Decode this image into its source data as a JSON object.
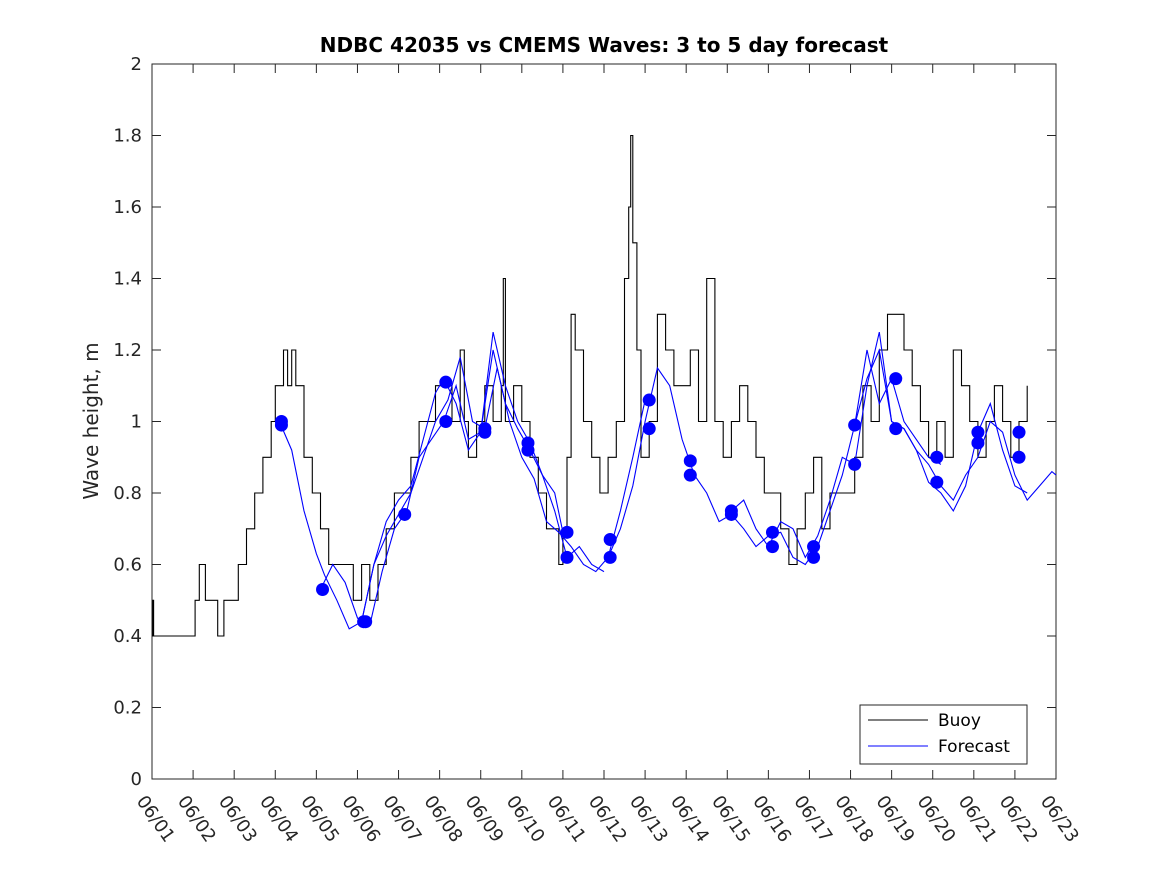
{
  "chart_data": {
    "type": "line",
    "title": "NDBC 42035 vs CMEMS Waves: 3 to 5 day forecast",
    "xlabel": "",
    "ylabel": "Wave height, m",
    "ylim": [
      0,
      2
    ],
    "yticks": [
      "0",
      "0.2",
      "0.4",
      "0.6",
      "0.8",
      "1",
      "1.2",
      "1.4",
      "1.6",
      "1.8",
      "2"
    ],
    "xlim": [
      "06/01",
      "06/23"
    ],
    "xticks": [
      "06/01",
      "06/02",
      "06/03",
      "06/04",
      "06/05",
      "06/06",
      "06/07",
      "06/08",
      "06/09",
      "06/10",
      "06/11",
      "06/12",
      "06/13",
      "06/14",
      "06/15",
      "06/16",
      "06/17",
      "06/18",
      "06/19",
      "06/20",
      "06/21",
      "06/22",
      "06/23"
    ],
    "grid": false,
    "legend_position": "bottom-right",
    "colors": {
      "buoy": "#000000",
      "forecast": "#0000ff"
    },
    "series": [
      {
        "name": "Buoy",
        "x_unit": "day_of_june",
        "x": [
          1.0,
          1.02,
          1.04,
          1.1,
          2.0,
          2.05,
          2.15,
          2.3,
          2.5,
          2.6,
          2.75,
          3.0,
          3.1,
          3.2,
          3.3,
          3.5,
          3.7,
          3.9,
          4.0,
          4.1,
          4.2,
          4.3,
          4.4,
          4.5,
          4.7,
          4.9,
          5.1,
          5.3,
          5.6,
          5.9,
          6.1,
          6.3,
          6.5,
          6.7,
          6.9,
          7.1,
          7.3,
          7.5,
          7.7,
          7.9,
          8.1,
          8.3,
          8.5,
          8.6,
          8.7,
          8.9,
          9.1,
          9.3,
          9.5,
          9.55,
          9.6,
          9.8,
          10.0,
          10.2,
          10.4,
          10.6,
          10.8,
          10.9,
          11.0,
          11.1,
          11.2,
          11.3,
          11.5,
          11.7,
          11.9,
          12.1,
          12.3,
          12.5,
          12.6,
          12.65,
          12.7,
          12.8,
          12.9,
          13.1,
          13.3,
          13.5,
          13.7,
          13.9,
          14.1,
          14.3,
          14.5,
          14.7,
          14.9,
          15.1,
          15.3,
          15.5,
          15.7,
          15.9,
          16.1,
          16.3,
          16.5,
          16.7,
          16.9,
          17.1,
          17.3,
          17.5,
          17.7,
          17.9,
          18.1,
          18.3,
          18.5,
          18.7,
          18.9,
          19.1,
          19.3,
          19.5,
          19.7,
          19.9,
          20.1,
          20.3,
          20.5,
          20.7,
          20.9,
          21.1,
          21.3,
          21.5,
          21.7,
          21.9,
          22.1,
          22.3
        ],
        "y": [
          0.4,
          0.5,
          0.4,
          0.4,
          0.4,
          0.5,
          0.6,
          0.5,
          0.5,
          0.4,
          0.5,
          0.5,
          0.6,
          0.6,
          0.7,
          0.8,
          0.9,
          1.0,
          1.1,
          1.1,
          1.2,
          1.1,
          1.2,
          1.1,
          0.9,
          0.8,
          0.7,
          0.6,
          0.6,
          0.5,
          0.6,
          0.5,
          0.6,
          0.7,
          0.8,
          0.8,
          0.9,
          1.0,
          1.0,
          1.1,
          1.1,
          1.0,
          1.2,
          1.0,
          0.9,
          1.0,
          1.1,
          1.0,
          1.1,
          1.4,
          1.0,
          1.1,
          1.0,
          0.9,
          0.8,
          0.7,
          0.7,
          0.6,
          0.7,
          0.9,
          1.3,
          1.2,
          1.0,
          0.9,
          0.8,
          0.9,
          1.0,
          1.4,
          1.6,
          1.8,
          1.5,
          1.2,
          0.9,
          1.0,
          1.3,
          1.2,
          1.1,
          1.1,
          1.2,
          1.0,
          1.4,
          1.0,
          0.9,
          1.0,
          1.1,
          1.0,
          0.9,
          0.8,
          0.8,
          0.7,
          0.6,
          0.7,
          0.8,
          0.9,
          0.7,
          0.8,
          0.8,
          0.8,
          0.9,
          1.1,
          1.0,
          1.2,
          1.3,
          1.3,
          1.2,
          1.1,
          1.0,
          0.9,
          1.0,
          0.9,
          1.2,
          1.1,
          1.0,
          0.9,
          1.0,
          1.1,
          1.0,
          0.9,
          1.0,
          1.1
        ]
      },
      {
        "name": "Forecast",
        "x_unit": "day_of_june",
        "segments": [
          {
            "x": [
              4.1,
              4.4,
              4.7,
              5.0,
              5.2,
              5.5,
              5.8,
              6.1,
              6.4,
              6.7,
              7.0,
              7.3,
              7.6,
              7.9,
              8.1,
              8.4,
              8.7,
              9.0,
              9.3,
              9.6,
              9.9,
              10.2,
              10.5,
              10.8,
              11.0
            ],
            "y": [
              1.0,
              0.92,
              0.75,
              0.63,
              0.57,
              0.5,
              0.42,
              0.44,
              0.6,
              0.72,
              0.78,
              0.82,
              0.95,
              1.08,
              1.12,
              1.05,
              0.92,
              0.97,
              1.25,
              1.1,
              1.0,
              0.94,
              0.85,
              0.8,
              0.69
            ]
          },
          {
            "x": [
              5.1,
              5.4,
              5.7,
              6.0,
              6.3,
              6.6,
              6.9,
              7.2,
              7.5,
              7.8,
              8.1,
              8.4,
              8.7,
              9.0,
              9.3,
              9.6,
              9.9,
              10.2,
              10.5,
              10.8,
              11.1,
              11.4,
              11.7,
              12.0
            ],
            "y": [
              0.53,
              0.6,
              0.55,
              0.45,
              0.43,
              0.58,
              0.7,
              0.75,
              0.9,
              0.95,
              1.0,
              1.1,
              0.95,
              0.97,
              1.2,
              1.05,
              0.98,
              0.92,
              0.85,
              0.75,
              0.62,
              0.65,
              0.6,
              0.58
            ]
          },
          {
            "x": [
              6.1,
              6.4,
              6.7,
              7.0,
              7.3,
              7.6,
              7.9,
              8.2,
              8.5,
              8.8,
              9.1,
              9.4,
              9.7,
              10.0,
              10.3,
              10.6,
              10.9,
              11.2,
              11.5,
              11.8,
              12.1,
              12.4,
              12.7,
              13.0
            ],
            "y": [
              0.44,
              0.6,
              0.68,
              0.74,
              0.8,
              0.9,
              1.0,
              1.06,
              1.18,
              1.0,
              0.98,
              1.15,
              1.0,
              0.9,
              0.84,
              0.72,
              0.69,
              0.65,
              0.6,
              0.58,
              0.62,
              0.75,
              0.9,
              1.06
            ]
          },
          {
            "x": [
              12.1,
              12.4,
              12.7,
              13.0,
              13.3,
              13.6,
              13.9,
              14.2,
              14.5,
              14.8,
              15.1,
              15.4,
              15.7,
              16.0,
              16.3,
              16.6,
              16.9,
              17.2,
              17.5,
              17.8,
              18.1,
              18.4,
              18.7,
              19.0,
              19.3,
              19.6,
              19.9,
              20.2
            ],
            "y": [
              0.62,
              0.7,
              0.82,
              1.0,
              1.15,
              1.1,
              0.95,
              0.85,
              0.8,
              0.72,
              0.74,
              0.7,
              0.65,
              0.68,
              0.69,
              0.62,
              0.6,
              0.65,
              0.75,
              0.85,
              0.99,
              1.2,
              1.05,
              1.12,
              1.0,
              0.95,
              0.9,
              0.88
            ]
          },
          {
            "x": [
              15.1,
              15.4,
              15.7,
              16.0,
              16.3,
              16.6,
              16.9,
              17.2,
              17.5,
              17.8,
              18.1,
              18.4,
              18.7,
              19.0,
              19.3,
              19.6,
              19.9,
              20.2,
              20.5,
              20.8,
              21.1,
              21.4,
              21.7,
              22.0,
              22.3
            ],
            "y": [
              0.75,
              0.78,
              0.7,
              0.65,
              0.72,
              0.7,
              0.62,
              0.68,
              0.78,
              0.9,
              0.88,
              1.1,
              1.25,
              1.0,
              0.98,
              0.92,
              0.83,
              0.8,
              0.75,
              0.82,
              0.97,
              1.05,
              0.92,
              0.82,
              0.8
            ]
          },
          {
            "x": [
              18.1,
              18.4,
              18.7,
              19.0,
              19.3,
              19.6,
              19.9,
              20.2,
              20.5,
              20.8,
              21.1,
              21.4,
              21.7,
              22.0,
              22.3,
              22.6,
              22.9,
              23.0
            ],
            "y": [
              0.99,
              1.12,
              1.2,
              1.0,
              0.98,
              0.92,
              0.88,
              0.82,
              0.78,
              0.85,
              0.9,
              1.0,
              0.97,
              0.85,
              0.78,
              0.82,
              0.86,
              0.85
            ]
          }
        ],
        "markers": {
          "x": [
            4.15,
            4.15,
            5.15,
            6.15,
            6.2,
            7.15,
            8.15,
            8.15,
            9.1,
            9.1,
            10.15,
            10.15,
            11.1,
            11.1,
            12.15,
            12.15,
            13.1,
            13.1,
            14.1,
            14.1,
            15.1,
            15.1,
            16.1,
            16.1,
            17.1,
            17.1,
            18.1,
            18.1,
            19.1,
            19.1,
            20.1,
            20.1,
            21.1,
            21.1,
            22.1,
            22.1
          ],
          "y": [
            1.0,
            0.99,
            0.53,
            0.44,
            0.44,
            0.74,
            1.11,
            1.0,
            0.98,
            0.97,
            0.94,
            0.92,
            0.69,
            0.62,
            0.67,
            0.62,
            1.06,
            0.98,
            0.89,
            0.85,
            0.75,
            0.74,
            0.69,
            0.65,
            0.65,
            0.62,
            0.99,
            0.88,
            1.12,
            0.98,
            0.9,
            0.83,
            0.97,
            0.94,
            0.97,
            0.9
          ]
        }
      }
    ]
  }
}
